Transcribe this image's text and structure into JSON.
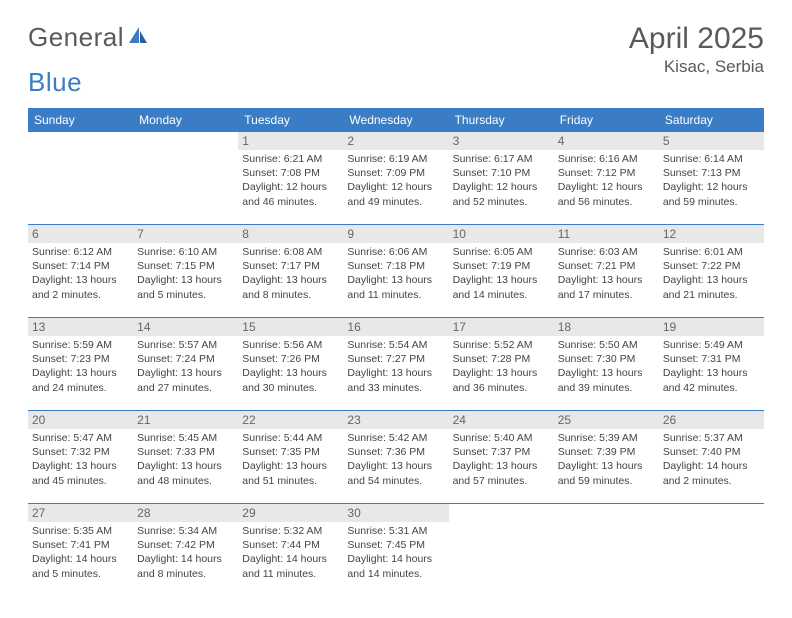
{
  "brand": {
    "part1": "General",
    "part2": "Blue"
  },
  "title": "April 2025",
  "location": "Kisac, Serbia",
  "colors": {
    "header_bg": "#3b7dc4",
    "header_text": "#ffffff",
    "daynum_bg": "#e8e8e8",
    "text": "#444444",
    "rule": "#3b7dc4"
  },
  "day_headers": [
    "Sunday",
    "Monday",
    "Tuesday",
    "Wednesday",
    "Thursday",
    "Friday",
    "Saturday"
  ],
  "weeks": [
    [
      null,
      null,
      {
        "n": "1",
        "sr": "6:21 AM",
        "ss": "7:08 PM",
        "dl": "12 hours and 46 minutes."
      },
      {
        "n": "2",
        "sr": "6:19 AM",
        "ss": "7:09 PM",
        "dl": "12 hours and 49 minutes."
      },
      {
        "n": "3",
        "sr": "6:17 AM",
        "ss": "7:10 PM",
        "dl": "12 hours and 52 minutes."
      },
      {
        "n": "4",
        "sr": "6:16 AM",
        "ss": "7:12 PM",
        "dl": "12 hours and 56 minutes."
      },
      {
        "n": "5",
        "sr": "6:14 AM",
        "ss": "7:13 PM",
        "dl": "12 hours and 59 minutes."
      }
    ],
    [
      {
        "n": "6",
        "sr": "6:12 AM",
        "ss": "7:14 PM",
        "dl": "13 hours and 2 minutes."
      },
      {
        "n": "7",
        "sr": "6:10 AM",
        "ss": "7:15 PM",
        "dl": "13 hours and 5 minutes."
      },
      {
        "n": "8",
        "sr": "6:08 AM",
        "ss": "7:17 PM",
        "dl": "13 hours and 8 minutes."
      },
      {
        "n": "9",
        "sr": "6:06 AM",
        "ss": "7:18 PM",
        "dl": "13 hours and 11 minutes."
      },
      {
        "n": "10",
        "sr": "6:05 AM",
        "ss": "7:19 PM",
        "dl": "13 hours and 14 minutes."
      },
      {
        "n": "11",
        "sr": "6:03 AM",
        "ss": "7:21 PM",
        "dl": "13 hours and 17 minutes."
      },
      {
        "n": "12",
        "sr": "6:01 AM",
        "ss": "7:22 PM",
        "dl": "13 hours and 21 minutes."
      }
    ],
    [
      {
        "n": "13",
        "sr": "5:59 AM",
        "ss": "7:23 PM",
        "dl": "13 hours and 24 minutes."
      },
      {
        "n": "14",
        "sr": "5:57 AM",
        "ss": "7:24 PM",
        "dl": "13 hours and 27 minutes."
      },
      {
        "n": "15",
        "sr": "5:56 AM",
        "ss": "7:26 PM",
        "dl": "13 hours and 30 minutes."
      },
      {
        "n": "16",
        "sr": "5:54 AM",
        "ss": "7:27 PM",
        "dl": "13 hours and 33 minutes."
      },
      {
        "n": "17",
        "sr": "5:52 AM",
        "ss": "7:28 PM",
        "dl": "13 hours and 36 minutes."
      },
      {
        "n": "18",
        "sr": "5:50 AM",
        "ss": "7:30 PM",
        "dl": "13 hours and 39 minutes."
      },
      {
        "n": "19",
        "sr": "5:49 AM",
        "ss": "7:31 PM",
        "dl": "13 hours and 42 minutes."
      }
    ],
    [
      {
        "n": "20",
        "sr": "5:47 AM",
        "ss": "7:32 PM",
        "dl": "13 hours and 45 minutes."
      },
      {
        "n": "21",
        "sr": "5:45 AM",
        "ss": "7:33 PM",
        "dl": "13 hours and 48 minutes."
      },
      {
        "n": "22",
        "sr": "5:44 AM",
        "ss": "7:35 PM",
        "dl": "13 hours and 51 minutes."
      },
      {
        "n": "23",
        "sr": "5:42 AM",
        "ss": "7:36 PM",
        "dl": "13 hours and 54 minutes."
      },
      {
        "n": "24",
        "sr": "5:40 AM",
        "ss": "7:37 PM",
        "dl": "13 hours and 57 minutes."
      },
      {
        "n": "25",
        "sr": "5:39 AM",
        "ss": "7:39 PM",
        "dl": "13 hours and 59 minutes."
      },
      {
        "n": "26",
        "sr": "5:37 AM",
        "ss": "7:40 PM",
        "dl": "14 hours and 2 minutes."
      }
    ],
    [
      {
        "n": "27",
        "sr": "5:35 AM",
        "ss": "7:41 PM",
        "dl": "14 hours and 5 minutes."
      },
      {
        "n": "28",
        "sr": "5:34 AM",
        "ss": "7:42 PM",
        "dl": "14 hours and 8 minutes."
      },
      {
        "n": "29",
        "sr": "5:32 AM",
        "ss": "7:44 PM",
        "dl": "14 hours and 11 minutes."
      },
      {
        "n": "30",
        "sr": "5:31 AM",
        "ss": "7:45 PM",
        "dl": "14 hours and 14 minutes."
      },
      null,
      null,
      null
    ]
  ],
  "labels": {
    "sunrise": "Sunrise: ",
    "sunset": "Sunset: ",
    "daylight": "Daylight: "
  }
}
